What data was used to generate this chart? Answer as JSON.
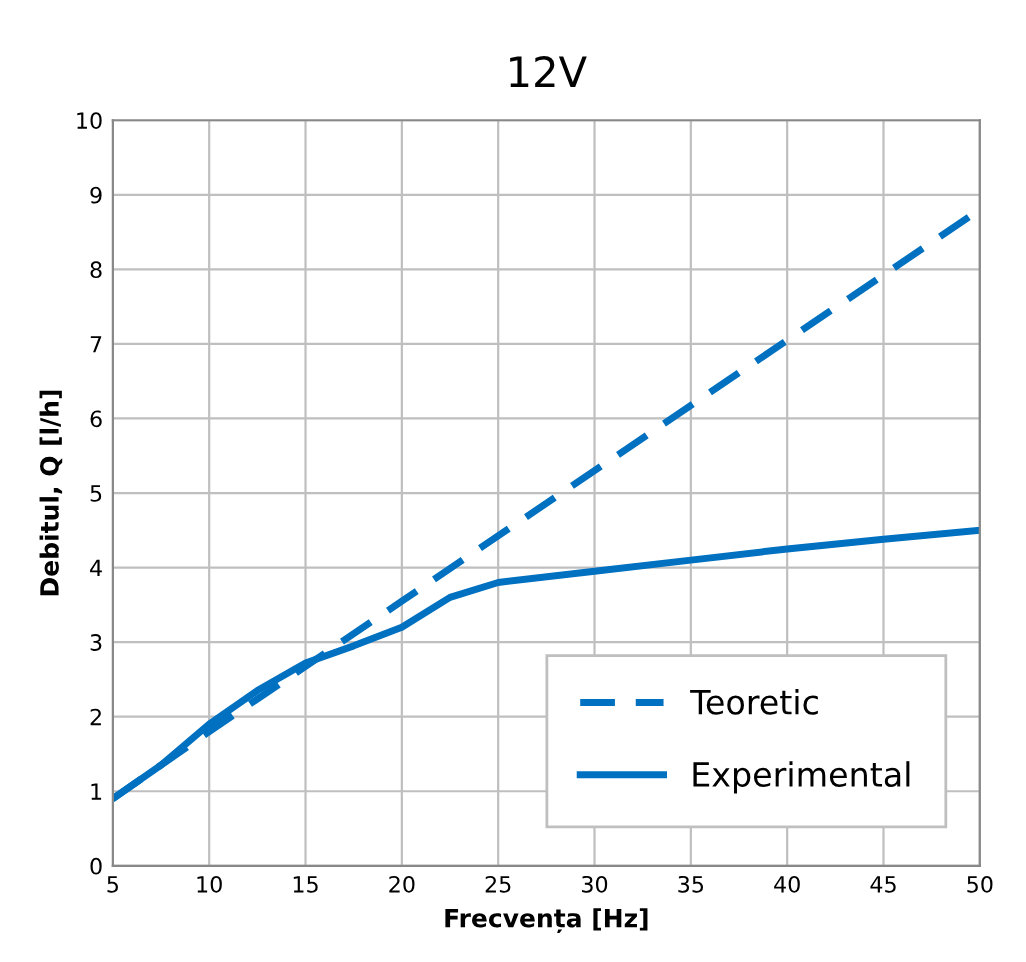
{
  "chart_data": {
    "type": "line",
    "title": "12V",
    "xlabel": "Frecvența [Hz]",
    "ylabel": "Debitul, Q [l/h]",
    "xlim": [
      5,
      50
    ],
    "xticks": [
      5,
      10,
      15,
      20,
      25,
      30,
      35,
      40,
      45,
      50
    ],
    "ylim": [
      0,
      10
    ],
    "yticks": [
      0,
      1,
      2,
      3,
      4,
      5,
      6,
      7,
      8,
      9,
      10
    ],
    "grid": true,
    "legend": "bottom right",
    "marker": "none",
    "series": [
      {
        "name": "Teoretic",
        "color": "#0070c0",
        "line_style": "dashed",
        "x": [
          5,
          10,
          20,
          30,
          40,
          50
        ],
        "values": [
          0.9,
          1.8,
          3.55,
          5.3,
          7.05,
          8.8
        ]
      },
      {
        "name": "Experimental",
        "color": "#0070c0",
        "line_style": "solid",
        "x": [
          5,
          7.5,
          10,
          12.5,
          15,
          17.5,
          20,
          22.5,
          25,
          30,
          35,
          40,
          45,
          50
        ],
        "values": [
          0.9,
          1.35,
          1.9,
          2.35,
          2.72,
          2.95,
          3.2,
          3.6,
          3.8,
          3.95,
          4.1,
          4.25,
          4.38,
          4.5
        ]
      }
    ]
  }
}
